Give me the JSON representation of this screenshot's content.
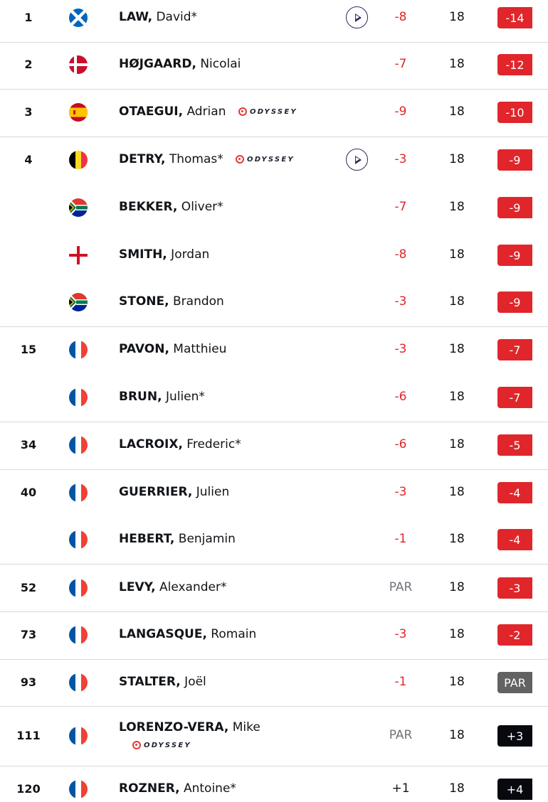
{
  "colors": {
    "under_par": "#e0262b",
    "par": "#626262",
    "over_par": "#07090f",
    "sponsor_accent": "#e03a3a"
  },
  "rows": [
    {
      "pos": "1",
      "flag": "scotland",
      "last": "LAW,",
      "first": " David*",
      "sponsor": false,
      "play": true,
      "today": "-8",
      "thru": "18",
      "total": "-14",
      "status": "neg"
    },
    {
      "pos": "2",
      "flag": "denmark",
      "last": "HØJGAARD,",
      "first": " Nicolai",
      "sponsor": false,
      "play": false,
      "today": "-7",
      "thru": "18",
      "total": "-12",
      "status": "neg"
    },
    {
      "pos": "3",
      "flag": "spain",
      "last": "OTAEGUI,",
      "first": " Adrian",
      "sponsor": true,
      "play": false,
      "today": "-9",
      "thru": "18",
      "total": "-10",
      "status": "neg"
    },
    {
      "pos": "4",
      "flag": "belgium",
      "last": "DETRY,",
      "first": " Thomas*",
      "sponsor": true,
      "play": true,
      "today": "-3",
      "thru": "18",
      "total": "-9",
      "status": "neg"
    },
    {
      "pos": "",
      "flag": "south-africa",
      "last": "BEKKER,",
      "first": " Oliver*",
      "sponsor": false,
      "play": false,
      "today": "-7",
      "thru": "18",
      "total": "-9",
      "status": "neg"
    },
    {
      "pos": "",
      "flag": "england",
      "last": "SMITH,",
      "first": " Jordan",
      "sponsor": false,
      "play": false,
      "today": "-8",
      "thru": "18",
      "total": "-9",
      "status": "neg"
    },
    {
      "pos": "",
      "flag": "south-africa",
      "last": "STONE,",
      "first": " Brandon",
      "sponsor": false,
      "play": false,
      "today": "-3",
      "thru": "18",
      "total": "-9",
      "status": "neg"
    },
    {
      "pos": "15",
      "flag": "france",
      "last": "PAVON,",
      "first": " Matthieu",
      "sponsor": false,
      "play": false,
      "today": "-3",
      "thru": "18",
      "total": "-7",
      "status": "neg"
    },
    {
      "pos": "",
      "flag": "france",
      "last": "BRUN,",
      "first": " Julien*",
      "sponsor": false,
      "play": false,
      "today": "-6",
      "thru": "18",
      "total": "-7",
      "status": "neg"
    },
    {
      "pos": "34",
      "flag": "france",
      "last": "LACROIX,",
      "first": " Frederic*",
      "sponsor": false,
      "play": false,
      "today": "-6",
      "thru": "18",
      "total": "-5",
      "status": "neg"
    },
    {
      "pos": "40",
      "flag": "france",
      "last": "GUERRIER,",
      "first": " Julien",
      "sponsor": false,
      "play": false,
      "today": "-3",
      "thru": "18",
      "total": "-4",
      "status": "neg"
    },
    {
      "pos": "",
      "flag": "france",
      "last": "HEBERT,",
      "first": " Benjamin",
      "sponsor": false,
      "play": false,
      "today": "-1",
      "thru": "18",
      "total": "-4",
      "status": "neg"
    },
    {
      "pos": "52",
      "flag": "france",
      "last": "LEVY,",
      "first": " Alexander*",
      "sponsor": false,
      "play": false,
      "today": "PAR",
      "thru": "18",
      "total": "-3",
      "status": "neg"
    },
    {
      "pos": "73",
      "flag": "france",
      "last": "LANGASQUE,",
      "first": " Romain",
      "sponsor": false,
      "play": false,
      "today": "-3",
      "thru": "18",
      "total": "-2",
      "status": "neg"
    },
    {
      "pos": "93",
      "flag": "france",
      "last": "STALTER,",
      "first": " Joël",
      "sponsor": false,
      "play": false,
      "today": "-1",
      "thru": "18",
      "total": "PAR",
      "status": "par"
    },
    {
      "pos": "111",
      "flag": "france",
      "last": "LORENZO-VERA,",
      "first": " Mike",
      "sponsor": true,
      "play": false,
      "today": "PAR",
      "thru": "18",
      "total": "+3",
      "status": "over"
    },
    {
      "pos": "120",
      "flag": "france",
      "last": "ROZNER,",
      "first": " Antoine*",
      "sponsor": false,
      "play": false,
      "today": "+1",
      "thru": "18",
      "total": "+4",
      "status": "over"
    }
  ],
  "sponsor_label": "ODYSSEY"
}
